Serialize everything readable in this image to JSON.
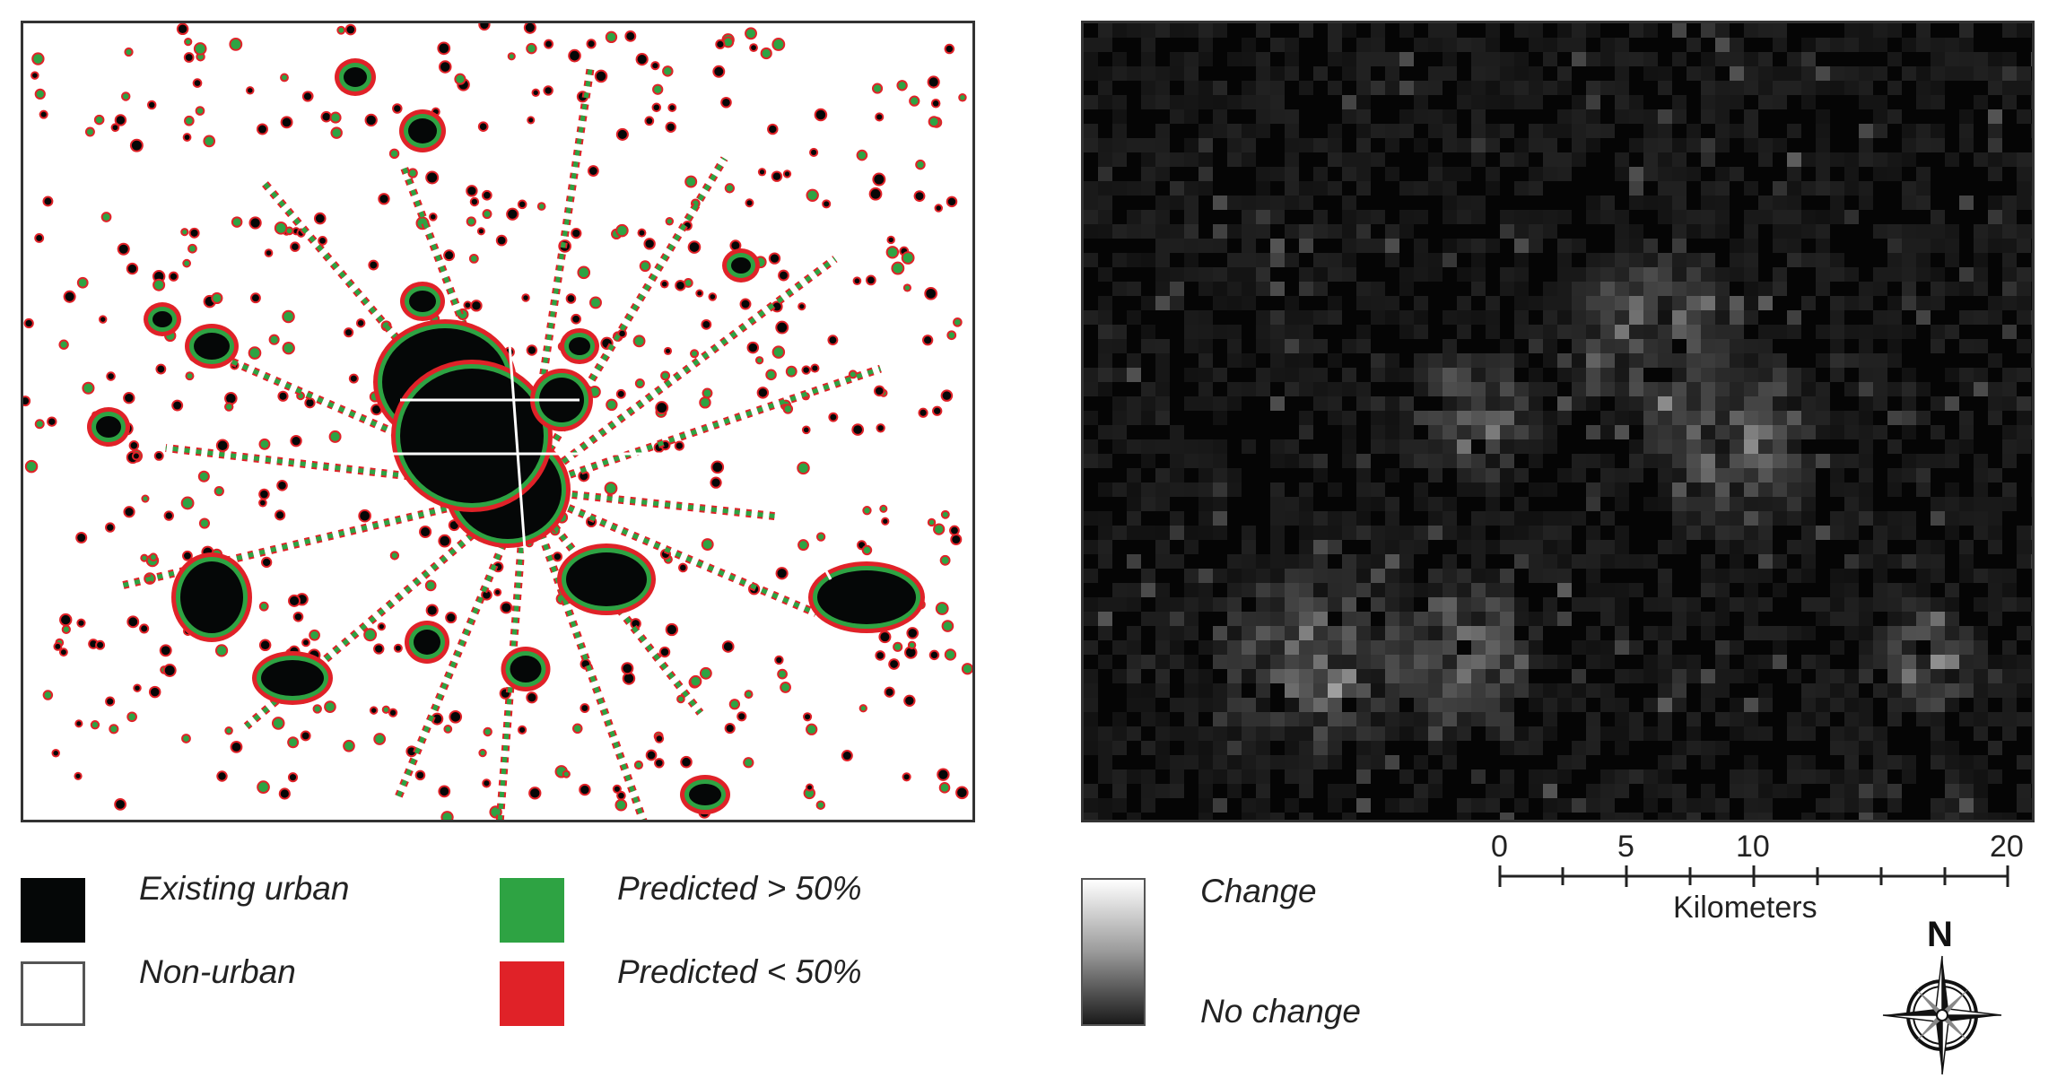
{
  "legend_left": {
    "items": [
      {
        "label": "Existing urban",
        "color": "#050707"
      },
      {
        "label": "Non-urban",
        "color": "#ffffff"
      },
      {
        "label": "Predicted > 50%",
        "color": "#2ea343"
      },
      {
        "label": "Predicted < 50%",
        "color": "#e02228"
      }
    ]
  },
  "legend_right": {
    "high_label": "Change",
    "low_label": "No change",
    "ramp_colors": [
      "#ffffff",
      "#111111"
    ]
  },
  "scalebar": {
    "ticks": [
      "0",
      "5",
      "10",
      "20"
    ],
    "unit": "Kilometers"
  },
  "north_arrow": {
    "label": "N",
    "icon": "compass-rose-icon"
  },
  "colors": {
    "urban": "#050707",
    "predicted_high": "#2ea343",
    "predicted_low": "#e02228",
    "frame": "#333333"
  }
}
